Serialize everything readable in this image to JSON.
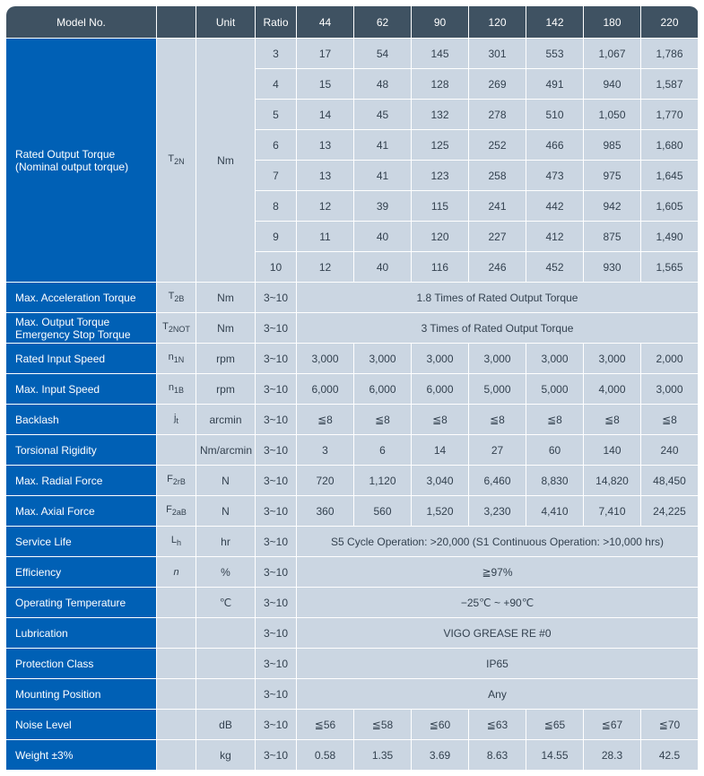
{
  "header": {
    "model": "Model No.",
    "symbol": "",
    "unit": "Unit",
    "ratio": "Ratio",
    "sizes": [
      "44",
      "62",
      "90",
      "120",
      "142",
      "180",
      "220"
    ]
  },
  "rated_output": {
    "label": "Rated Output Torque\n(Nominal output torque)",
    "symbol": "T₂N",
    "unit": "Nm",
    "rows": [
      {
        "ratio": "3",
        "vals": [
          "17",
          "54",
          "145",
          "301",
          "553",
          "1,067",
          "1,786"
        ]
      },
      {
        "ratio": "4",
        "vals": [
          "15",
          "48",
          "128",
          "269",
          "491",
          "940",
          "1,587"
        ]
      },
      {
        "ratio": "5",
        "vals": [
          "14",
          "45",
          "132",
          "278",
          "510",
          "1,050",
          "1,770"
        ]
      },
      {
        "ratio": "6",
        "vals": [
          "13",
          "41",
          "125",
          "252",
          "466",
          "985",
          "1,680"
        ]
      },
      {
        "ratio": "7",
        "vals": [
          "13",
          "41",
          "123",
          "258",
          "473",
          "975",
          "1,645"
        ]
      },
      {
        "ratio": "8",
        "vals": [
          "12",
          "39",
          "115",
          "241",
          "442",
          "942",
          "1,605"
        ]
      },
      {
        "ratio": "9",
        "vals": [
          "11",
          "40",
          "120",
          "227",
          "412",
          "875",
          "1,490"
        ]
      },
      {
        "ratio": "10",
        "vals": [
          "12",
          "40",
          "116",
          "246",
          "452",
          "930",
          "1,565"
        ]
      }
    ]
  },
  "spec_rows": [
    {
      "label": "Max. Acceleration Torque",
      "symbol": "T₂B",
      "unit": "Nm",
      "ratio": "3~10",
      "note": "1.8 Times of Rated Output Torque"
    },
    {
      "label": "Max. Output Torque\nEmergency Stop Torque",
      "symbol": "T₂NOT",
      "unit": "Nm",
      "ratio": "3~10",
      "note": "3 Times of Rated Output Torque"
    },
    {
      "label": "Rated Input Speed",
      "symbol": "n₁N",
      "unit": "rpm",
      "ratio": "3~10",
      "vals": [
        "3,000",
        "3,000",
        "3,000",
        "3,000",
        "3,000",
        "3,000",
        "2,000"
      ]
    },
    {
      "label": "Max. Input Speed",
      "symbol": "n₁B",
      "unit": "rpm",
      "ratio": "3~10",
      "vals": [
        "6,000",
        "6,000",
        "6,000",
        "5,000",
        "5,000",
        "4,000",
        "3,000"
      ]
    },
    {
      "label": "Backlash",
      "symbol": "jₜ",
      "unit": "arcmin",
      "ratio": "3~10",
      "vals": [
        "≦8",
        "≦8",
        "≦8",
        "≦8",
        "≦8",
        "≦8",
        "≦8"
      ]
    },
    {
      "label": "Torsional Rigidity",
      "symbol": "",
      "unit": "Nm/arcmin",
      "ratio": "3~10",
      "vals": [
        "3",
        "6",
        "14",
        "27",
        "60",
        "140",
        "240"
      ]
    },
    {
      "label": "Max. Radial Force",
      "symbol": "F₂rB",
      "unit": "N",
      "ratio": "3~10",
      "vals": [
        "720",
        "1,120",
        "3,040",
        "6,460",
        "8,830",
        "14,820",
        "48,450"
      ]
    },
    {
      "label": "Max. Axial Force",
      "symbol": "F₂aB",
      "unit": "N",
      "ratio": "3~10",
      "vals": [
        "360",
        "560",
        "1,520",
        "3,230",
        "4,410",
        "7,410",
        "24,225"
      ]
    },
    {
      "label": "Service Life",
      "symbol": "Lₕ",
      "unit": "hr",
      "ratio": "3~10",
      "note": "S5 Cycle Operation: >20,000 (S1 Continuous Operation: >10,000 hrs)"
    },
    {
      "label": "Efficiency",
      "symbol": "n",
      "symbol_italic": true,
      "unit": "%",
      "ratio": "3~10",
      "note": "≧97%"
    },
    {
      "label": "Operating Temperature",
      "symbol": "",
      "unit": "℃",
      "ratio": "3~10",
      "note": "−25℃ ~ +90℃"
    },
    {
      "label": "Lubrication",
      "symbol": "",
      "unit": "",
      "ratio": "3~10",
      "note": "VIGO GREASE RE #0"
    },
    {
      "label": "Protection Class",
      "symbol": "",
      "unit": "",
      "ratio": "3~10",
      "note": "IP65"
    },
    {
      "label": "Mounting Position",
      "symbol": "",
      "unit": "",
      "ratio": "3~10",
      "note": "Any"
    },
    {
      "label": "Noise Level",
      "symbol": "",
      "unit": "dB",
      "ratio": "3~10",
      "vals": [
        "≦56",
        "≦58",
        "≦60",
        "≦63",
        "≦65",
        "≦67",
        "≦70"
      ]
    },
    {
      "label": "Weight ±3%",
      "symbol": "",
      "unit": "kg",
      "ratio": "3~10",
      "vals": [
        "0.58",
        "1.35",
        "3.69",
        "8.63",
        "14.55",
        "28.3",
        "42.5"
      ]
    }
  ],
  "style": {
    "header_bg": "#3f5262",
    "label_bg": "#0060b5",
    "cell_bg": "#cbd6e2",
    "text_dark": "#33414f"
  }
}
